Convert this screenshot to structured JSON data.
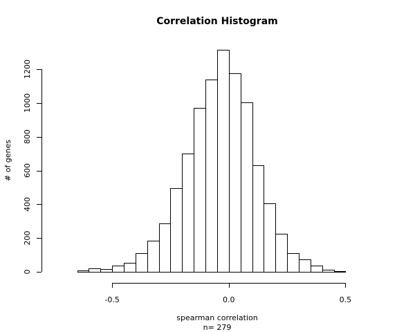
{
  "chart_data": {
    "type": "bar",
    "title": "Correlation Histogram",
    "xlabel": "spearman correlation",
    "xlabel_sub": "n= 279",
    "ylabel": "# of genes",
    "xlim": [
      -0.8,
      0.65
    ],
    "ylim": [
      0,
      1300
    ],
    "x_ticks": [
      -0.5,
      0.0,
      0.5
    ],
    "x_tick_labels": [
      "-0.5",
      "0.0",
      "0.5"
    ],
    "y_ticks": [
      0,
      200,
      400,
      600,
      800,
      1000,
      1200
    ],
    "y_tick_labels": [
      "0",
      "200",
      "400",
      "600",
      "800",
      "1000",
      "1200"
    ],
    "grid": false,
    "bin_width": 0.05,
    "bin_start": -0.65,
    "values": [
      10,
      20,
      18,
      35,
      55,
      110,
      185,
      285,
      495,
      700,
      970,
      1140,
      1315,
      1175,
      1005,
      630,
      405,
      225,
      110,
      75,
      38,
      12,
      6
    ],
    "bar_fill": "#ffffff",
    "bar_stroke": "#000000"
  }
}
